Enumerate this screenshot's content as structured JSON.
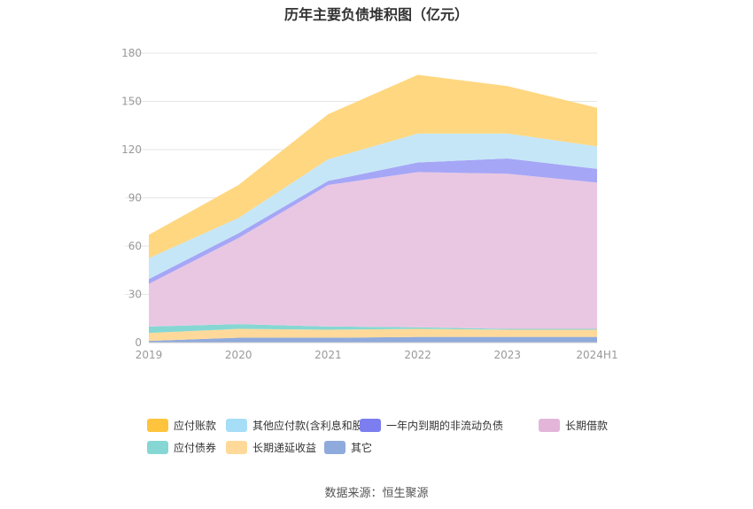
{
  "chart_data": {
    "type": "area",
    "title": "历年主要负债堆积图（亿元）",
    "categories": [
      "2019",
      "2020",
      "2021",
      "2022",
      "2023",
      "2024H1"
    ],
    "ylim": [
      0,
      180
    ],
    "yticks": [
      0,
      30,
      60,
      90,
      120,
      150,
      180
    ],
    "stacked": true,
    "grid": true,
    "legend_position": "bottom",
    "series": [
      {
        "name": "其它",
        "color": "#8FAADC",
        "values": [
          1,
          3,
          3,
          3.5,
          3.5,
          3.5
        ]
      },
      {
        "name": "长期递延收益",
        "color": "#FFD99A",
        "values": [
          5,
          5.5,
          5,
          5,
          4.5,
          4.5
        ]
      },
      {
        "name": "应付债券",
        "color": "#86D7D3",
        "values": [
          4,
          3,
          2,
          1,
          0.5,
          0.5
        ]
      },
      {
        "name": "长期借款",
        "color": "#E9C7E3",
        "values": [
          26.5,
          53.5,
          88,
          96.5,
          96.5,
          91
        ]
      },
      {
        "name": "一年内到期的非流动负债",
        "color": "#A5A6F6",
        "values": [
          3,
          3,
          2.5,
          6,
          9.5,
          8.5
        ]
      },
      {
        "name": "其他应付款(含利息和股利)",
        "color": "#C5E6F7",
        "values": [
          13,
          9.5,
          13.5,
          18,
          15.5,
          14
        ]
      },
      {
        "name": "应付账款",
        "color": "#FFD780",
        "values": [
          14.5,
          20.5,
          28,
          36.5,
          29.5,
          24
        ]
      }
    ]
  },
  "legend": {
    "items": [
      {
        "label": "应付账款",
        "color": "#FFC43D"
      },
      {
        "label": "其他应付款(含利息和股利)",
        "color": "#A6DEF7"
      },
      {
        "label": "一年内到期的非流动负债",
        "color": "#7C7EF0"
      },
      {
        "label": "长期借款",
        "color": "#E3B6D9"
      },
      {
        "label": "应付债券",
        "color": "#86D7D3"
      },
      {
        "label": "长期递延收益",
        "color": "#FFD99A"
      },
      {
        "label": "其它",
        "color": "#8FAADC"
      }
    ]
  },
  "footer": {
    "source": "数据来源：恒生聚源"
  }
}
